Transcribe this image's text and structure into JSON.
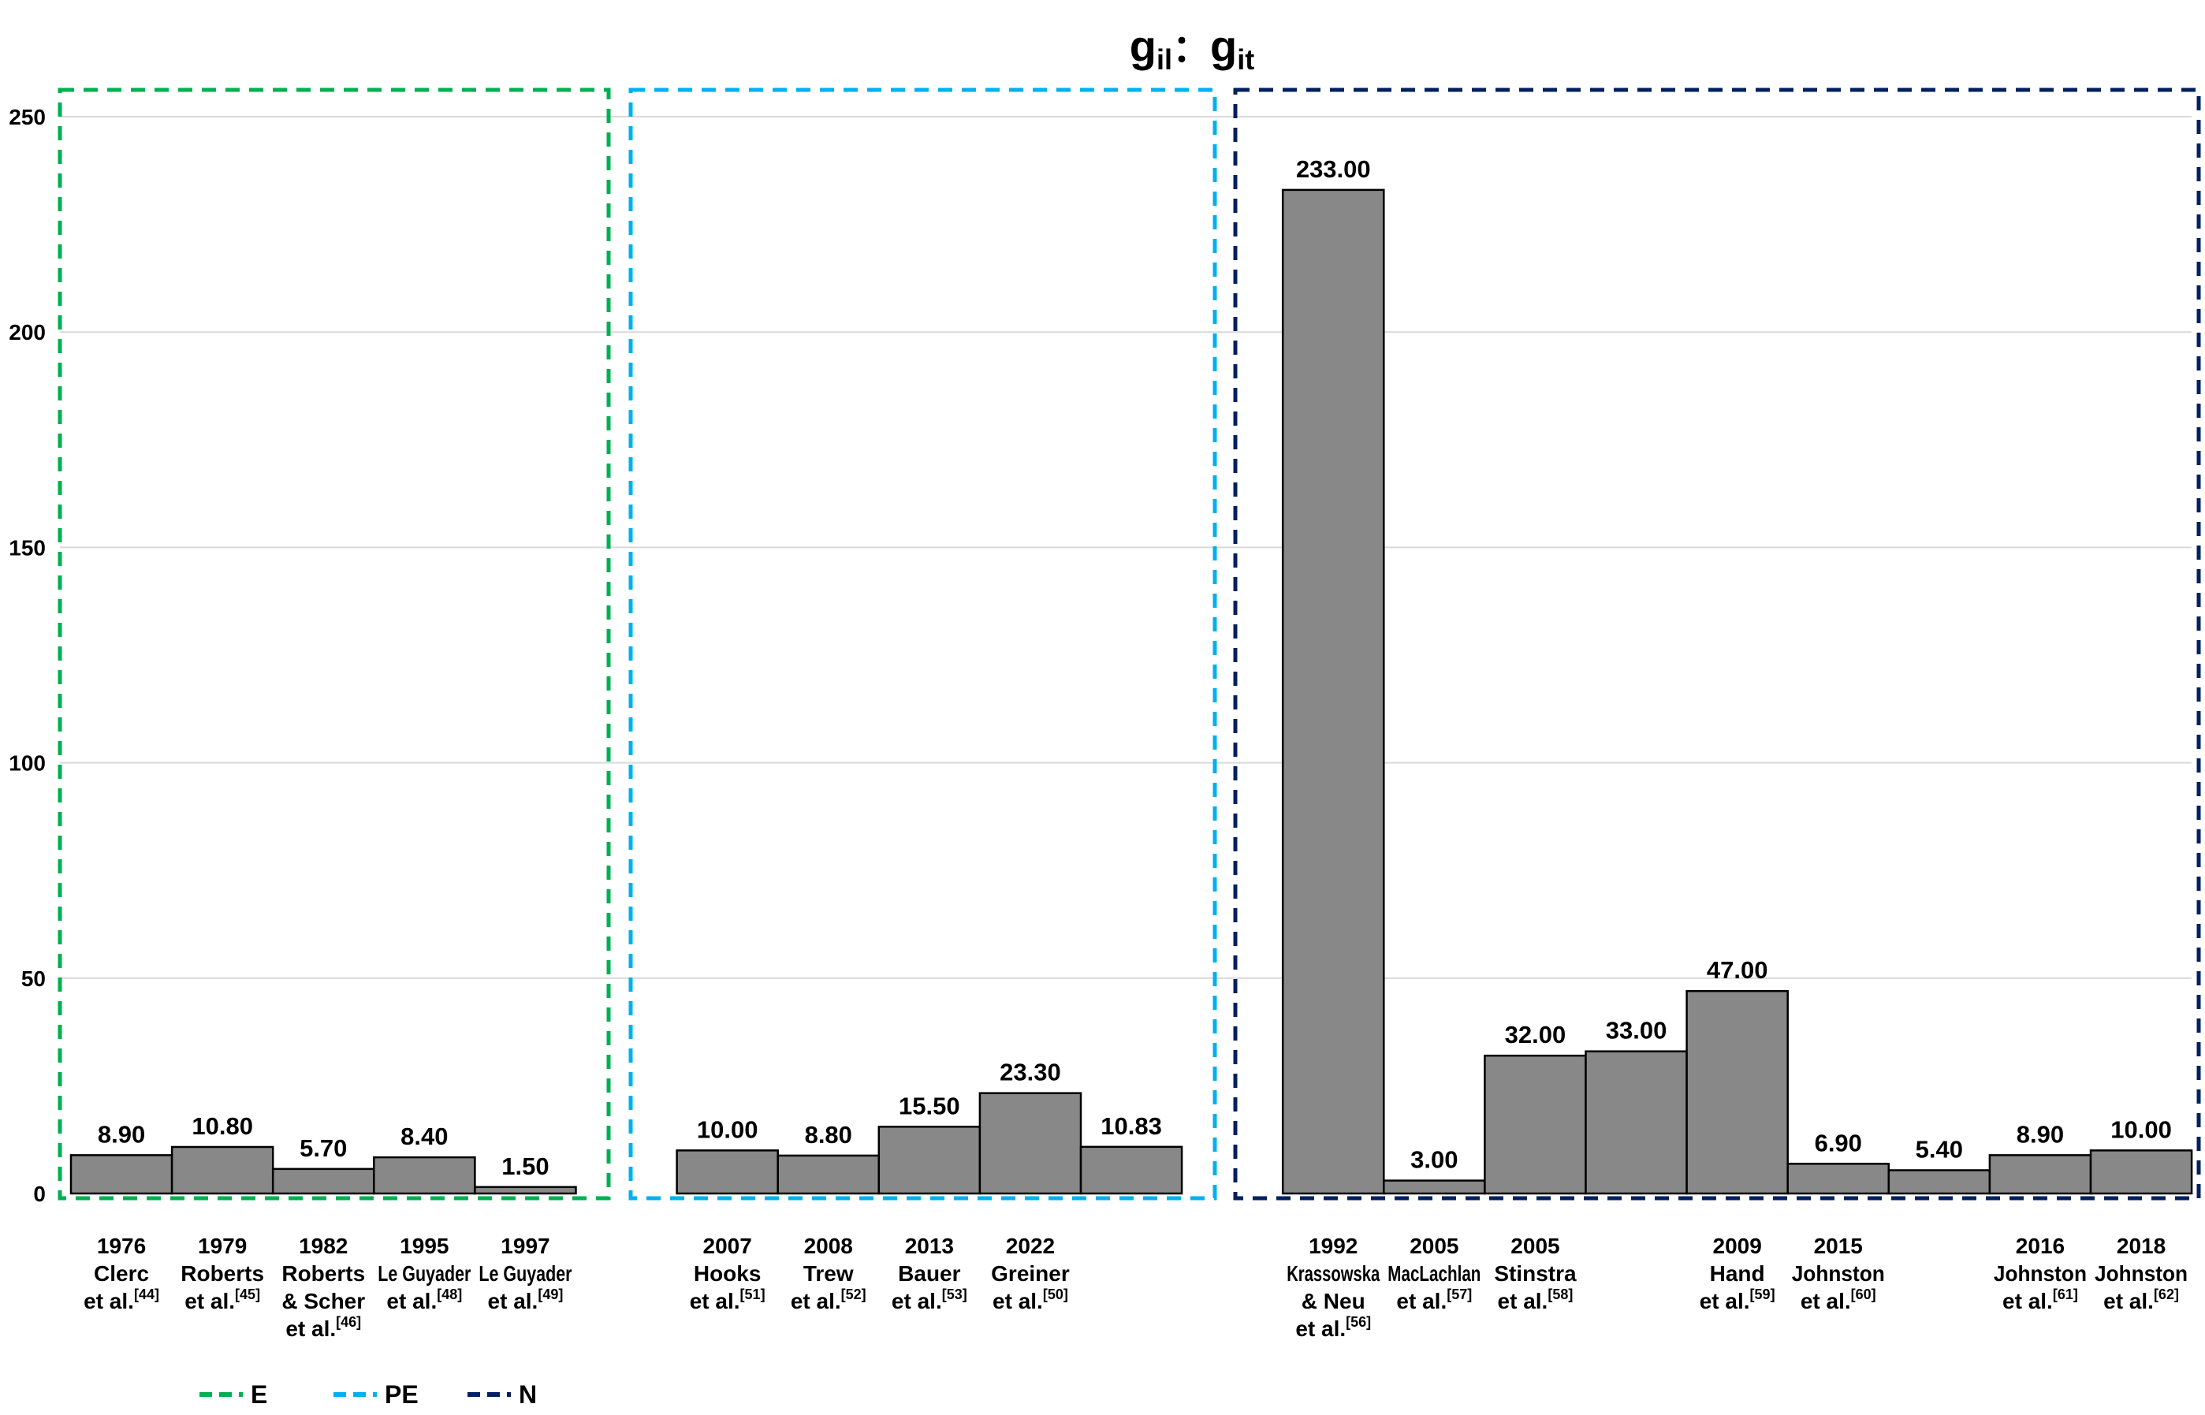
{
  "chart_data": {
    "type": "bar",
    "title": {
      "main": "g",
      "sub1": "il",
      "sep": "：",
      "main2": "g",
      "sub2": "it"
    },
    "ylim": [
      0,
      250
    ],
    "yticks": [
      0,
      50,
      100,
      150,
      200,
      250
    ],
    "grid": true,
    "legend_placement": "bottom-left",
    "bar_color": "#888888",
    "groups": [
      {
        "name": "E",
        "color": "#00B050",
        "bars": [
          {
            "lines": [
              "1976",
              "Clerc",
              "et al."
            ],
            "ref": "[44]",
            "value": 8.9,
            "label": "8.90"
          },
          {
            "lines": [
              "1979",
              "Roberts",
              "et al."
            ],
            "ref": "[45]",
            "value": 10.8,
            "label": "10.80"
          },
          {
            "lines": [
              "1982",
              "Roberts",
              "& Scher",
              "et al."
            ],
            "ref": "[46]",
            "value": 5.7,
            "label": "5.70"
          },
          {
            "lines": [
              "1995",
              "Le Guyader",
              "et al."
            ],
            "ref": "[48]",
            "value": 8.4,
            "label": "8.40"
          },
          {
            "lines": [
              "1997",
              "Le Guyader",
              "et al."
            ],
            "ref": "[49]",
            "value": 1.5,
            "label": "1.50"
          }
        ]
      },
      {
        "name": "PE",
        "color": "#00B0F0",
        "bars": [
          {
            "lines": [
              "2007",
              "Hooks",
              "et al."
            ],
            "ref": "[51]",
            "value": 10.0,
            "label": "10.00"
          },
          {
            "lines": [
              "2008",
              "Trew",
              "et al."
            ],
            "ref": "[52]",
            "value": 8.8,
            "label": "8.80"
          },
          {
            "lines": [
              "2013",
              "Bauer",
              "et al."
            ],
            "ref": "[53]",
            "value": 15.5,
            "label": "15.50"
          },
          {
            "lines": [
              "2022",
              "Greiner",
              "et al."
            ],
            "ref": "[50]",
            "value": 23.3,
            "label": "23.30"
          },
          {
            "lines": [],
            "ref": "",
            "value": 10.83,
            "label": "10.83"
          }
        ]
      },
      {
        "name": "N",
        "color": "#002060",
        "bars": [
          {
            "lines": [
              "1992",
              "Krassowska",
              "& Neu",
              "et al."
            ],
            "ref": "[56]",
            "value": 233.0,
            "label": "233.00"
          },
          {
            "lines": [
              "2005",
              "MacLachlan",
              "et al."
            ],
            "ref": "[57]",
            "value": 3.0,
            "label": "3.00"
          },
          {
            "lines": [
              "2005",
              "Stinstra",
              "et al."
            ],
            "ref": "[58]",
            "value": 32.0,
            "label": "32.00"
          },
          {
            "lines": [],
            "ref": "",
            "value": 33.0,
            "label": "33.00"
          },
          {
            "lines": [
              "2009",
              "Hand",
              "et al."
            ],
            "ref": "[59]",
            "value": 47.0,
            "label": "47.00"
          },
          {
            "lines": [
              "2015",
              "Johnston",
              "et al."
            ],
            "ref": "[60]",
            "value": 6.9,
            "label": "6.90"
          },
          {
            "lines": [],
            "ref": "",
            "value": 5.4,
            "label": "5.40"
          },
          {
            "lines": [
              "2016",
              "Johnston",
              "et al."
            ],
            "ref": "[61]",
            "value": 8.9,
            "label": "8.90"
          },
          {
            "lines": [
              "2018",
              "Johnston",
              "et al."
            ],
            "ref": "[62]",
            "value": 10.0,
            "label": "10.00"
          }
        ]
      }
    ]
  }
}
